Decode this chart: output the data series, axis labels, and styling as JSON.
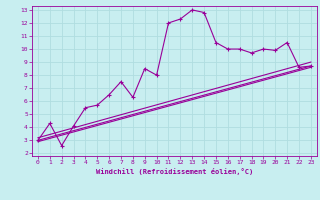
{
  "xlabel": "Windchill (Refroidissement éolien,°C)",
  "background_color": "#c8eef0",
  "line_color": "#990099",
  "grid_color": "#b0dde0",
  "xlim": [
    -0.5,
    23.5
  ],
  "ylim": [
    1.8,
    13.3
  ],
  "xticks": [
    0,
    1,
    2,
    3,
    4,
    5,
    6,
    7,
    8,
    9,
    10,
    11,
    12,
    13,
    14,
    15,
    16,
    17,
    18,
    19,
    20,
    21,
    22,
    23
  ],
  "yticks": [
    2,
    3,
    4,
    5,
    6,
    7,
    8,
    9,
    10,
    11,
    12,
    13
  ],
  "series1_x": [
    0,
    1,
    2,
    3,
    4,
    5,
    6,
    7,
    8,
    9,
    10,
    11,
    12,
    13,
    14,
    15,
    16,
    17,
    18,
    19,
    20,
    21,
    22,
    23
  ],
  "series1_y": [
    3.0,
    4.3,
    2.6,
    4.1,
    5.5,
    5.7,
    6.5,
    7.5,
    6.3,
    8.5,
    8.0,
    12.0,
    12.3,
    13.0,
    12.8,
    10.5,
    10.0,
    10.0,
    9.7,
    10.0,
    9.9,
    10.5,
    8.6,
    8.7
  ],
  "series2_x": [
    0,
    23
  ],
  "series2_y": [
    2.9,
    8.6
  ],
  "series3_x": [
    0,
    23
  ],
  "series3_y": [
    3.0,
    8.7
  ],
  "series4_x": [
    0,
    23
  ],
  "series4_y": [
    3.2,
    9.0
  ],
  "marker": "+"
}
